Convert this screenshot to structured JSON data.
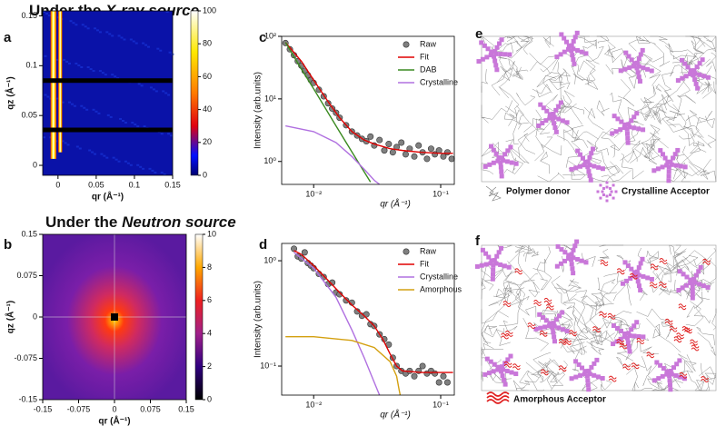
{
  "headings": [
    [
      "Under the ",
      "X-ray source"
    ],
    [
      "Under the ",
      "Neutron source"
    ]
  ],
  "chart_data": [
    {
      "type": "heatmap",
      "label": "a",
      "colormap": "jet",
      "xlabel": "qr (Å⁻¹)",
      "ylabel": "qz (Å⁻¹)",
      "xlim": [
        -0.02,
        0.15
      ],
      "ylim": [
        -0.01,
        0.155
      ],
      "xticks": [
        0,
        0.05,
        0.1,
        0.15
      ],
      "yticks": [
        0,
        0.05,
        0.1,
        0.15
      ],
      "colorbar": {
        "lim": [
          0,
          100
        ],
        "ticks": [
          0,
          20,
          40,
          60,
          80,
          100
        ]
      }
    },
    {
      "type": "heatmap",
      "label": "b",
      "colormap": "hot",
      "xlabel": "qr (Å⁻¹)",
      "ylabel": "qz (Å⁻¹)",
      "xlim": [
        -0.15,
        0.15
      ],
      "ylim": [
        -0.15,
        0.15
      ],
      "xticks": [
        -0.15,
        -0.075,
        0,
        0.075,
        0.15
      ],
      "yticks": [
        -0.15,
        -0.075,
        0,
        0.075,
        0.15
      ],
      "colorbar": {
        "lim": [
          0,
          10
        ],
        "ticks": [
          0,
          2,
          4,
          6,
          8,
          10
        ]
      }
    },
    {
      "type": "line",
      "label": "c",
      "log_x": true,
      "log_y": true,
      "xlabel": "qr (Å⁻¹)",
      "ylabel": "Intensity (arb.units)",
      "xlim": [
        0.0056,
        0.128
      ],
      "ylim": [
        0.43,
        100
      ],
      "xticks": [
        {
          "value": 0.01,
          "label": "10⁻²"
        },
        {
          "value": 0.1,
          "label": "10⁻¹"
        }
      ],
      "yticks": [
        {
          "value": 1,
          "label": "10⁰"
        },
        {
          "value": 10,
          "label": "10¹"
        },
        {
          "value": 100,
          "label": "10²"
        }
      ],
      "series": [
        {
          "name": "Raw",
          "kind": "scatter",
          "color": "#808080",
          "x": [
            0.006,
            0.0065,
            0.007,
            0.0075,
            0.008,
            0.0085,
            0.009,
            0.0095,
            0.01,
            0.011,
            0.012,
            0.013,
            0.014,
            0.015,
            0.016,
            0.018,
            0.02,
            0.022,
            0.024,
            0.026,
            0.028,
            0.03,
            0.033,
            0.036,
            0.039,
            0.042,
            0.045,
            0.049,
            0.053,
            0.057,
            0.062,
            0.067,
            0.072,
            0.078,
            0.084,
            0.09,
            0.097,
            0.105,
            0.113,
            0.122
          ],
          "values": [
            78,
            62,
            50,
            40,
            34,
            28,
            24,
            20,
            18,
            14,
            11,
            8.5,
            7,
            6,
            5,
            3.8,
            3,
            2.6,
            2.3,
            2.1,
            2.5,
            1.8,
            2.2,
            1.5,
            1.9,
            1.4,
            1.7,
            2.0,
            1.3,
            1.6,
            1.2,
            1.8,
            1.4,
            1.1,
            1.6,
            1.3,
            1.5,
            1.2,
            1.4,
            1.1
          ]
        },
        {
          "name": "Fit",
          "kind": "line",
          "color": "#e00000",
          "x": [
            0.006,
            0.008,
            0.01,
            0.013,
            0.016,
            0.02,
            0.025,
            0.03,
            0.04,
            0.05,
            0.07,
            0.1,
            0.125
          ],
          "values": [
            80,
            40,
            20,
            9,
            5,
            3,
            2.2,
            1.9,
            1.6,
            1.5,
            1.4,
            1.35,
            1.35
          ]
        },
        {
          "name": "DAB",
          "kind": "line",
          "color": "#3a8a20",
          "x": [
            0.006,
            0.008,
            0.01,
            0.015,
            0.02,
            0.025,
            0.028
          ],
          "values": [
            80,
            30,
            14.5,
            3.7,
            1.42,
            0.68,
            0.47
          ]
        },
        {
          "name": "Crystalline",
          "kind": "line",
          "color": "#b070e0",
          "x": [
            0.006,
            0.01,
            0.015,
            0.02,
            0.025,
            0.03,
            0.033
          ],
          "values": [
            3.7,
            3.0,
            2.0,
            1.2,
            0.75,
            0.5,
            0.43
          ]
        }
      ]
    },
    {
      "type": "line",
      "label": "d",
      "log_x": true,
      "log_y": true,
      "xlabel": "qr (Å⁻¹)",
      "ylabel": "Intensity (arb.units)",
      "xlim": [
        0.0056,
        0.128
      ],
      "ylim": [
        0.053,
        1.46
      ],
      "xticks": [
        {
          "value": 0.01,
          "label": "10⁻²"
        },
        {
          "value": 0.1,
          "label": "10⁻¹"
        }
      ],
      "yticks": [
        {
          "value": 0.1,
          "label": "10⁻¹"
        },
        {
          "value": 1,
          "label": "10⁰"
        }
      ],
      "series": [
        {
          "name": "Raw",
          "kind": "scatter",
          "color": "#808080",
          "x": [
            0.007,
            0.0075,
            0.008,
            0.0085,
            0.009,
            0.0095,
            0.01,
            0.011,
            0.012,
            0.013,
            0.014,
            0.015,
            0.016,
            0.018,
            0.02,
            0.022,
            0.024,
            0.026,
            0.028,
            0.03,
            0.033,
            0.036,
            0.039,
            0.042,
            0.045,
            0.049,
            0.053,
            0.057,
            0.062,
            0.067,
            0.072,
            0.078,
            0.084,
            0.09,
            0.097,
            0.105,
            0.113
          ],
          "values": [
            1.3,
            1.1,
            1.05,
            1.2,
            0.95,
            0.9,
            0.85,
            0.75,
            0.7,
            0.6,
            0.62,
            0.5,
            0.48,
            0.42,
            0.4,
            0.33,
            0.3,
            0.31,
            0.25,
            0.24,
            0.2,
            0.18,
            0.16,
            0.12,
            0.1,
            0.09,
            0.085,
            0.09,
            0.08,
            0.09,
            0.1,
            0.085,
            0.09,
            0.085,
            0.07,
            0.08,
            0.07
          ]
        },
        {
          "name": "Fit",
          "kind": "line",
          "color": "#e00000",
          "x": [
            0.007,
            0.008,
            0.01,
            0.013,
            0.016,
            0.02,
            0.025,
            0.03,
            0.035,
            0.04,
            0.045,
            0.05,
            0.07,
            0.1,
            0.125
          ],
          "values": [
            1.25,
            1.15,
            0.9,
            0.65,
            0.5,
            0.38,
            0.3,
            0.24,
            0.18,
            0.13,
            0.1,
            0.09,
            0.087,
            0.087,
            0.087
          ]
        },
        {
          "name": "Crystalline",
          "kind": "line",
          "color": "#b070e0",
          "x": [
            0.007,
            0.01,
            0.015,
            0.02,
            0.025,
            0.03,
            0.033
          ],
          "values": [
            1.2,
            0.85,
            0.45,
            0.22,
            0.12,
            0.07,
            0.053
          ]
        },
        {
          "name": "Amorphous",
          "kind": "line",
          "color": "#d4a010",
          "x": [
            0.006,
            0.01,
            0.02,
            0.03,
            0.04,
            0.045,
            0.047,
            0.048
          ],
          "values": [
            0.19,
            0.19,
            0.175,
            0.15,
            0.11,
            0.08,
            0.06,
            0.053
          ]
        }
      ]
    }
  ],
  "schematics": [
    {
      "label": "e",
      "legend": [
        "Polymer donor",
        "Crystalline Acceptor"
      ]
    },
    {
      "label": "f",
      "legend": [
        "Amorphous Acceptor"
      ]
    }
  ]
}
